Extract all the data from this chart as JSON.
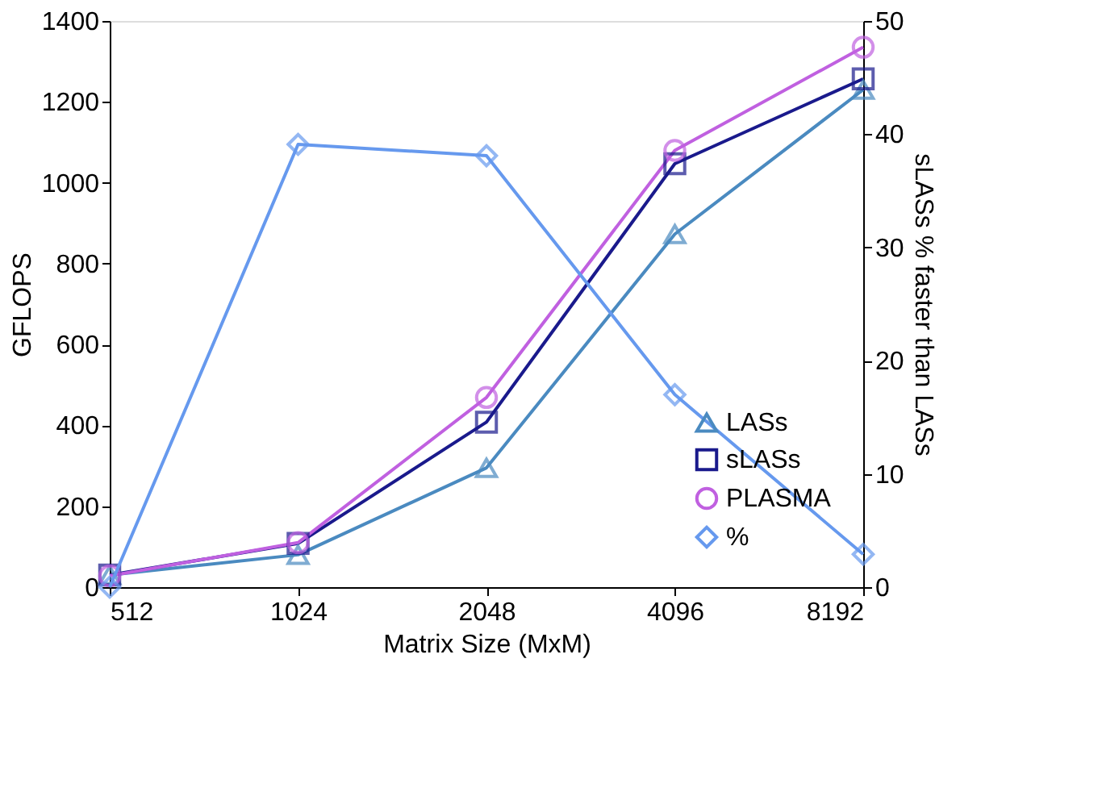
{
  "chart_data": {
    "type": "line",
    "xlabel": "Matrix Size (MxM)",
    "ylabel": "GFLOPS",
    "y2label": "sLASs % faster than LASs",
    "categories": [
      "512",
      "1024",
      "2048",
      "4096",
      "8192"
    ],
    "ylim": [
      0,
      1400
    ],
    "yticks": [
      0,
      200,
      400,
      600,
      800,
      1000,
      1200,
      1400
    ],
    "y2lim": [
      0,
      50
    ],
    "y2ticks": [
      0,
      10,
      20,
      30,
      40,
      50
    ],
    "grid": false,
    "legend": "bottom right",
    "series": [
      {
        "name": "LASs",
        "color": "#4a8ac0",
        "marker": "triangle",
        "values": [
          30,
          80,
          295,
          873,
          1230
        ]
      },
      {
        "name": "sLASs",
        "color": "#1a1a8c",
        "marker": "square",
        "values": [
          30,
          108,
          408,
          1047,
          1257
        ]
      },
      {
        "name": "PLASMA",
        "color": "#c060e0",
        "marker": "circle",
        "values": [
          28,
          110,
          469,
          1080,
          1335
        ]
      },
      {
        "name": "%",
        "color": "#6699ee",
        "marker": "diamond",
        "axis": "y2",
        "values": [
          0,
          39.1,
          38.1,
          17,
          2.9
        ]
      }
    ]
  }
}
